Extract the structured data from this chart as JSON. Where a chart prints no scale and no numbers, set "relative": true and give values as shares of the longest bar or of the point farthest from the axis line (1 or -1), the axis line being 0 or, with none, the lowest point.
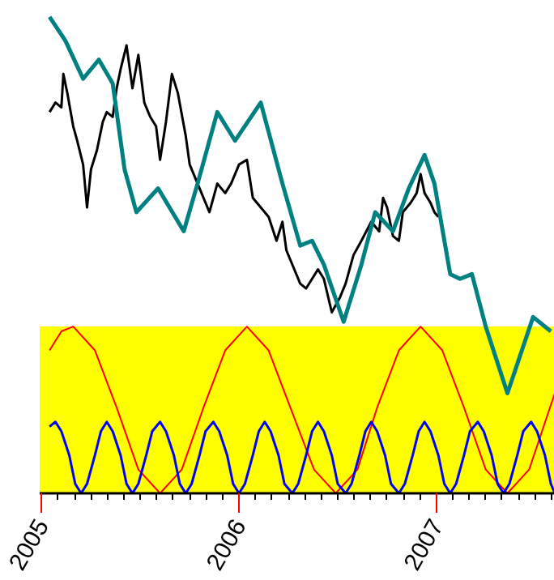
{
  "chart_data": {
    "type": "line",
    "relative": true,
    "grid": false,
    "xlim": [
      2004.99,
      2007.6
    ],
    "xticks": [
      2005,
      2006,
      2007,
      {
        "value": 2005.083,
        "label": null
      },
      {
        "value": 2005.167,
        "label": null
      },
      {
        "value": 2005.25,
        "label": null
      },
      {
        "value": 2005.333,
        "label": null
      },
      {
        "value": 2005.417,
        "label": null
      },
      {
        "value": 2005.5,
        "label": null
      },
      {
        "value": 2005.583,
        "label": null
      },
      {
        "value": 2005.667,
        "label": null
      },
      {
        "value": 2005.75,
        "label": null
      },
      {
        "value": 2005.833,
        "label": null
      },
      {
        "value": 2005.917,
        "label": null
      },
      {
        "value": 2006.083,
        "label": null
      },
      {
        "value": 2006.167,
        "label": null
      },
      {
        "value": 2006.25,
        "label": null
      },
      {
        "value": 2006.333,
        "label": null
      },
      {
        "value": 2006.417,
        "label": null
      },
      {
        "value": 2006.5,
        "label": null
      },
      {
        "value": 2006.583,
        "label": null
      },
      {
        "value": 2006.667,
        "label": null
      },
      {
        "value": 2006.75,
        "label": null
      },
      {
        "value": 2006.833,
        "label": null
      },
      {
        "value": 2006.917,
        "label": null
      },
      {
        "value": 2007.083,
        "label": null
      },
      {
        "value": 2007.167,
        "label": null
      },
      {
        "value": 2007.25,
        "label": null
      },
      {
        "value": 2007.333,
        "label": null
      },
      {
        "value": 2007.417,
        "label": null
      },
      {
        "value": 2007.5,
        "label": null
      },
      {
        "value": 2007.583,
        "label": null
      }
    ],
    "bands": [
      {
        "axis": "y",
        "from": 0,
        "to": 0.35,
        "color": "#ffff00"
      }
    ],
    "series": [
      {
        "color": "#000000",
        "x": [
          2005.04,
          2005.07,
          2005.1,
          2005.11,
          2005.13,
          2005.16,
          2005.18,
          2005.21,
          2005.23,
          2005.25,
          2005.28,
          2005.31,
          2005.33,
          2005.36,
          2005.38,
          2005.4,
          2005.43,
          2005.46,
          2005.49,
          2005.52,
          2005.55,
          2005.58,
          2005.6,
          2005.63,
          2005.66,
          2005.69,
          2005.73,
          2005.75,
          2005.79,
          2005.83,
          2005.85,
          2005.89,
          2005.93,
          2005.96,
          2006.0,
          2006.04,
          2006.07,
          2006.11,
          2006.15,
          2006.19,
          2006.22,
          2006.24,
          2006.28,
          2006.31,
          2006.34,
          2006.4,
          2006.43,
          2006.47,
          2006.51,
          2006.54,
          2006.58,
          2006.62,
          2006.67,
          2006.71,
          2006.73,
          2006.75,
          2006.78,
          2006.81,
          2006.83,
          2006.87,
          2006.9,
          2006.92,
          2006.94,
          2006.97,
          2006.99,
          2007.01
        ],
        "values": [
          0.8,
          0.82,
          0.81,
          0.88,
          0.84,
          0.77,
          0.74,
          0.69,
          0.6,
          0.68,
          0.72,
          0.78,
          0.8,
          0.79,
          0.85,
          0.89,
          0.94,
          0.85,
          0.92,
          0.82,
          0.79,
          0.77,
          0.7,
          0.78,
          0.88,
          0.84,
          0.75,
          0.69,
          0.65,
          0.61,
          0.59,
          0.65,
          0.63,
          0.65,
          0.69,
          0.7,
          0.62,
          0.6,
          0.58,
          0.53,
          0.57,
          0.51,
          0.47,
          0.44,
          0.43,
          0.47,
          0.45,
          0.38,
          0.41,
          0.44,
          0.5,
          0.53,
          0.57,
          0.55,
          0.62,
          0.6,
          0.54,
          0.53,
          0.59,
          0.61,
          0.63,
          0.67,
          0.63,
          0.61,
          0.59,
          0.58
        ]
      },
      {
        "color": "#008080",
        "x": [
          2005.04,
          2005.12,
          2005.21,
          2005.29,
          2005.36,
          2005.42,
          2005.48,
          2005.59,
          2005.72,
          2005.79,
          2005.89,
          2005.98,
          2006.11,
          2006.22,
          2006.31,
          2006.37,
          2006.43,
          2006.53,
          2006.62,
          2006.69,
          2006.78,
          2006.86,
          2006.94,
          2006.99,
          2007.07,
          2007.12,
          2007.18,
          2007.25,
          2007.36,
          2007.49,
          2007.58
        ],
        "values": [
          1.0,
          0.95,
          0.87,
          0.91,
          0.86,
          0.68,
          0.59,
          0.64,
          0.55,
          0.65,
          0.8,
          0.74,
          0.82,
          0.65,
          0.52,
          0.53,
          0.48,
          0.36,
          0.48,
          0.59,
          0.55,
          0.64,
          0.71,
          0.65,
          0.46,
          0.45,
          0.46,
          0.35,
          0.21,
          0.37,
          0.34
        ]
      },
      {
        "color": "#ff0000",
        "x": [
          2005.04,
          2005.1,
          2005.16,
          2005.27,
          2005.38,
          2005.49,
          2005.6,
          2005.71,
          2005.82,
          2005.93,
          2006.04,
          2006.15,
          2006.26,
          2006.38,
          2006.49,
          2006.6,
          2006.7,
          2006.81,
          2006.92,
          2007.03,
          2007.14,
          2007.25,
          2007.36,
          2007.47,
          2007.6
        ],
        "values": [
          0.3,
          0.34,
          0.35,
          0.3,
          0.18,
          0.05,
          0,
          0.05,
          0.18,
          0.3,
          0.35,
          0.3,
          0.18,
          0.05,
          0,
          0.05,
          0.18,
          0.3,
          0.35,
          0.3,
          0.18,
          0.05,
          0,
          0.05,
          0.21
        ]
      },
      {
        "color": "#0000ff",
        "x": [
          2005.04,
          2005.07,
          2005.1,
          2005.14,
          2005.17,
          2005.2,
          2005.23,
          2005.27,
          2005.3,
          2005.33,
          2005.36,
          2005.4,
          2005.43,
          2005.46,
          2005.49,
          2005.53,
          2005.56,
          2005.6,
          2005.63,
          2005.67,
          2005.7,
          2005.73,
          2005.76,
          2005.8,
          2005.83,
          2005.87,
          2005.9,
          2005.94,
          2005.97,
          2006.0,
          2006.03,
          2006.07,
          2006.1,
          2006.13,
          2006.16,
          2006.2,
          2006.23,
          2006.27,
          2006.3,
          2006.34,
          2006.37,
          2006.4,
          2006.43,
          2006.47,
          2006.5,
          2006.54,
          2006.57,
          2006.61,
          2006.64,
          2006.67,
          2006.7,
          2006.74,
          2006.77,
          2006.81,
          2006.84,
          2006.88,
          2006.91,
          2006.94,
          2006.97,
          2007.01,
          2007.04,
          2007.07,
          2007.1,
          2007.14,
          2007.17,
          2007.21,
          2007.24,
          2007.28,
          2007.31,
          2007.34,
          2007.37,
          2007.41,
          2007.44,
          2007.48,
          2007.51,
          2007.55,
          2007.58,
          2007.6
        ],
        "values": [
          0.14,
          0.15,
          0.13,
          0.08,
          0.02,
          0,
          0.02,
          0.08,
          0.13,
          0.15,
          0.13,
          0.08,
          0.02,
          0,
          0.02,
          0.08,
          0.13,
          0.15,
          0.13,
          0.08,
          0.02,
          0,
          0.02,
          0.08,
          0.13,
          0.15,
          0.13,
          0.08,
          0.02,
          0,
          0.02,
          0.08,
          0.13,
          0.15,
          0.13,
          0.08,
          0.02,
          0,
          0.02,
          0.08,
          0.13,
          0.15,
          0.13,
          0.08,
          0.02,
          0,
          0.02,
          0.08,
          0.13,
          0.15,
          0.13,
          0.08,
          0.02,
          0,
          0.02,
          0.08,
          0.13,
          0.15,
          0.13,
          0.08,
          0.02,
          0,
          0.02,
          0.08,
          0.13,
          0.15,
          0.13,
          0.08,
          0.02,
          0,
          0.02,
          0.08,
          0.13,
          0.15,
          0.13,
          0.08,
          0.02,
          0
        ]
      }
    ]
  }
}
